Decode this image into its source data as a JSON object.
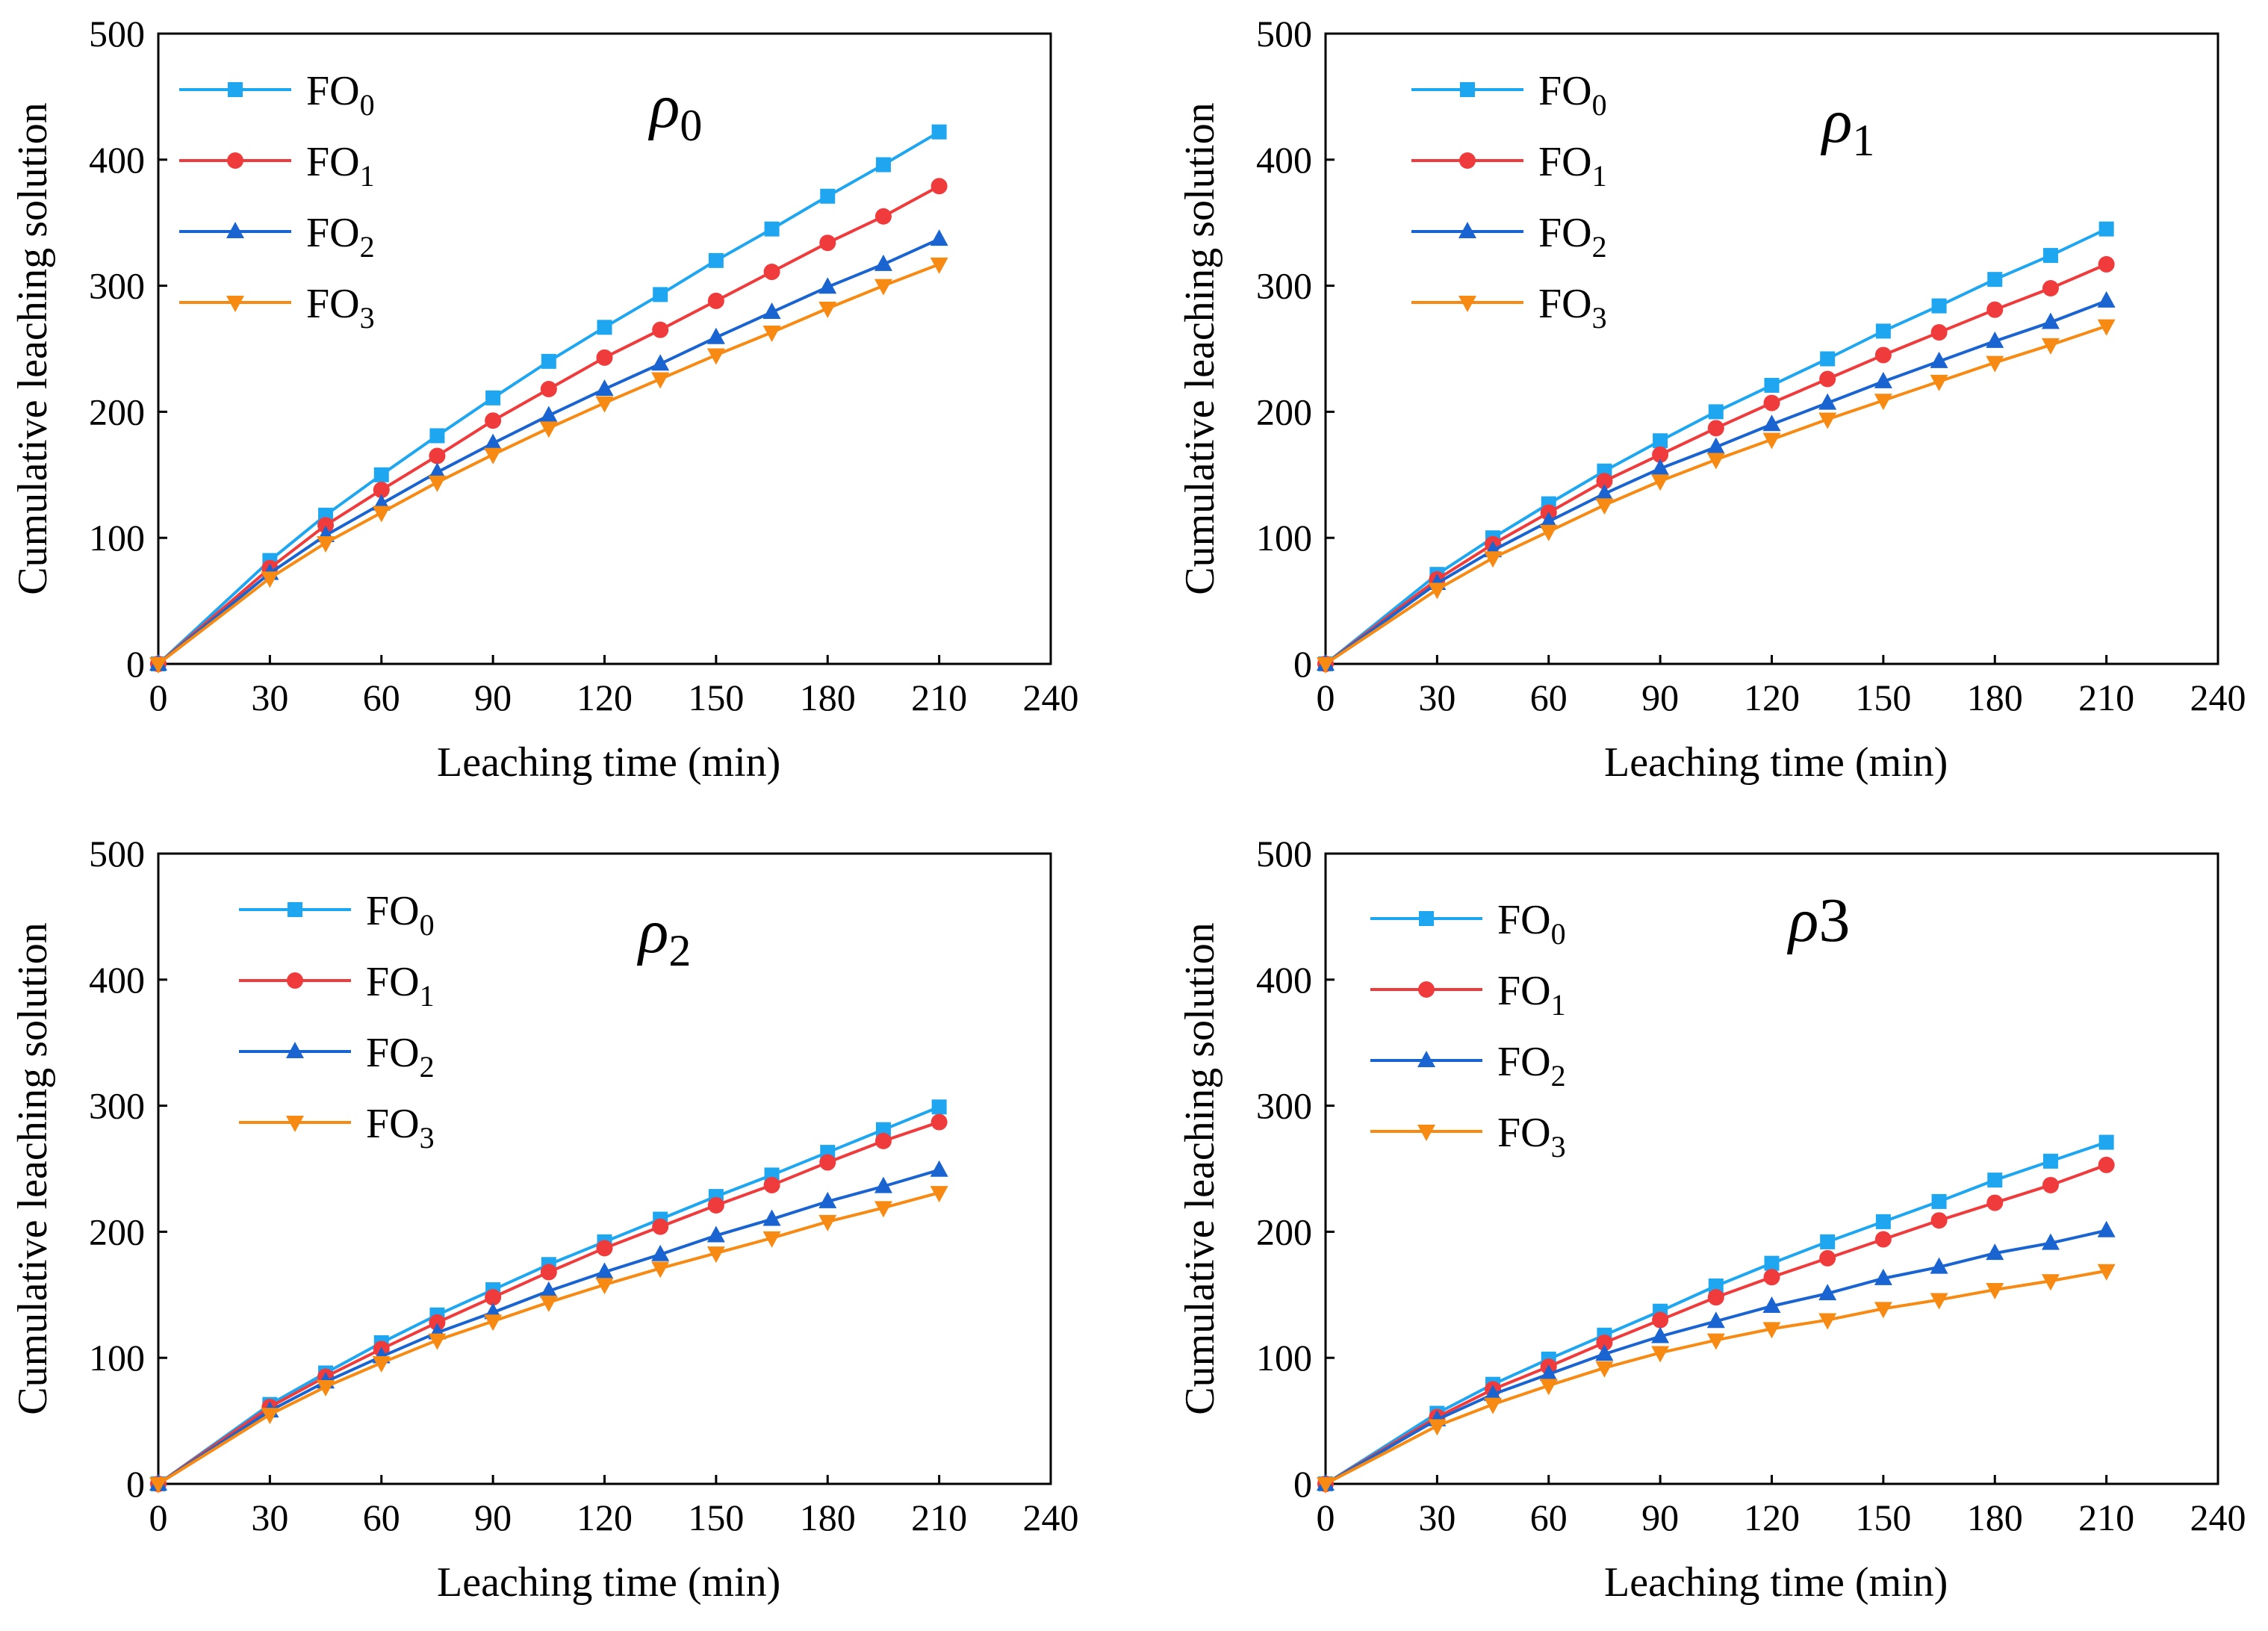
{
  "figure": {
    "description": "Four-panel line chart of cumulative leaching solution vs leaching time"
  },
  "chart_data": [
    {
      "type": "line",
      "title": "",
      "panel_label": {
        "symbol": "ρ",
        "sub": "0"
      },
      "xlabel": "Leaching time (min)",
      "ylabel": "Cumulative leaching solution",
      "xlim": [
        0,
        240
      ],
      "ylim": [
        0,
        500
      ],
      "xticks": [
        0,
        30,
        60,
        90,
        120,
        150,
        180,
        210,
        240
      ],
      "yticks": [
        0,
        100,
        200,
        300,
        400,
        500
      ],
      "legend_position": "top-left",
      "x": [
        0,
        30,
        45,
        60,
        75,
        90,
        105,
        120,
        135,
        150,
        165,
        180,
        195,
        210
      ],
      "series": [
        {
          "name": "FO",
          "sub": "0",
          "marker": "square",
          "color": "#1ea7f0",
          "values": [
            0,
            82,
            118,
            150,
            181,
            211,
            240,
            267,
            293,
            320,
            345,
            371,
            396,
            422
          ]
        },
        {
          "name": "FO",
          "sub": "1",
          "marker": "circle",
          "color": "#ef3b3b",
          "values": [
            0,
            76,
            110,
            138,
            165,
            193,
            218,
            243,
            265,
            288,
            311,
            334,
            355,
            379
          ]
        },
        {
          "name": "FO",
          "sub": "2",
          "marker": "triangle-up",
          "color": "#1a64d1",
          "values": [
            0,
            72,
            102,
            127,
            152,
            175,
            197,
            218,
            238,
            259,
            279,
            299,
            317,
            337
          ]
        },
        {
          "name": "FO",
          "sub": "3",
          "marker": "triangle-down",
          "color": "#f78a12",
          "values": [
            0,
            68,
            96,
            120,
            144,
            166,
            187,
            207,
            226,
            245,
            263,
            282,
            300,
            317
          ]
        }
      ]
    },
    {
      "type": "line",
      "title": "",
      "panel_label": {
        "symbol": "ρ",
        "sub": "1"
      },
      "xlabel": "Leaching time (min)",
      "ylabel": "Cumulative leaching solution",
      "xlim": [
        0,
        240
      ],
      "ylim": [
        0,
        500
      ],
      "xticks": [
        0,
        30,
        60,
        90,
        120,
        150,
        180,
        210,
        240
      ],
      "yticks": [
        0,
        100,
        200,
        300,
        400,
        500
      ],
      "legend_position": "top-left",
      "x": [
        0,
        30,
        45,
        60,
        75,
        90,
        105,
        120,
        135,
        150,
        165,
        180,
        195,
        210
      ],
      "series": [
        {
          "name": "FO",
          "sub": "0",
          "marker": "square",
          "color": "#1ea7f0",
          "values": [
            0,
            71,
            100,
            127,
            153,
            177,
            200,
            221,
            242,
            264,
            284,
            305,
            324,
            345
          ]
        },
        {
          "name": "FO",
          "sub": "1",
          "marker": "circle",
          "color": "#ef3b3b",
          "values": [
            0,
            67,
            95,
            120,
            145,
            166,
            187,
            207,
            226,
            245,
            263,
            281,
            298,
            317
          ]
        },
        {
          "name": "FO",
          "sub": "2",
          "marker": "triangle-up",
          "color": "#1a64d1",
          "values": [
            0,
            64,
            90,
            113,
            135,
            155,
            172,
            190,
            207,
            224,
            240,
            256,
            271,
            288
          ]
        },
        {
          "name": "FO",
          "sub": "3",
          "marker": "triangle-down",
          "color": "#f78a12",
          "values": [
            0,
            59,
            84,
            105,
            126,
            145,
            162,
            178,
            194,
            209,
            224,
            239,
            253,
            268
          ]
        }
      ]
    },
    {
      "type": "line",
      "title": "",
      "panel_label": {
        "symbol": "ρ",
        "sub": "2"
      },
      "xlabel": "Leaching time (min)",
      "ylabel": "Cumulative leaching solution",
      "xlim": [
        0,
        240
      ],
      "ylim": [
        0,
        500
      ],
      "xticks": [
        0,
        30,
        60,
        90,
        120,
        150,
        180,
        210,
        240
      ],
      "yticks": [
        0,
        100,
        200,
        300,
        400,
        500
      ],
      "legend_position": "top-left",
      "x": [
        0,
        30,
        45,
        60,
        75,
        90,
        105,
        120,
        135,
        150,
        165,
        180,
        195,
        210
      ],
      "series": [
        {
          "name": "FO",
          "sub": "0",
          "marker": "square",
          "color": "#1ea7f0",
          "values": [
            0,
            63,
            88,
            112,
            134,
            154,
            174,
            192,
            210,
            228,
            245,
            263,
            281,
            299
          ]
        },
        {
          "name": "FO",
          "sub": "1",
          "marker": "circle",
          "color": "#ef3b3b",
          "values": [
            0,
            61,
            85,
            107,
            128,
            148,
            168,
            187,
            204,
            221,
            237,
            255,
            272,
            287
          ]
        },
        {
          "name": "FO",
          "sub": "2",
          "marker": "triangle-up",
          "color": "#1a64d1",
          "values": [
            0,
            58,
            81,
            101,
            120,
            136,
            153,
            168,
            182,
            197,
            210,
            224,
            236,
            249
          ]
        },
        {
          "name": "FO",
          "sub": "3",
          "marker": "triangle-down",
          "color": "#f78a12",
          "values": [
            0,
            55,
            77,
            96,
            114,
            129,
            144,
            158,
            171,
            183,
            195,
            208,
            219,
            231
          ]
        }
      ]
    },
    {
      "type": "line",
      "title": "",
      "panel_label": {
        "symbol": "ρ",
        "text": "3"
      },
      "xlabel": "Leaching time (min)",
      "ylabel": "Cumulative leaching solution",
      "xlim": [
        0,
        240
      ],
      "ylim": [
        0,
        500
      ],
      "xticks": [
        0,
        30,
        60,
        90,
        120,
        150,
        180,
        210,
        240
      ],
      "yticks": [
        0,
        100,
        200,
        300,
        400,
        500
      ],
      "legend_position": "top-left",
      "x": [
        0,
        30,
        45,
        60,
        75,
        90,
        105,
        120,
        135,
        150,
        165,
        180,
        195,
        210
      ],
      "series": [
        {
          "name": "FO",
          "sub": "0",
          "marker": "square",
          "color": "#1ea7f0",
          "values": [
            0,
            56,
            79,
            99,
            118,
            137,
            157,
            175,
            192,
            208,
            224,
            241,
            256,
            271
          ]
        },
        {
          "name": "FO",
          "sub": "1",
          "marker": "circle",
          "color": "#ef3b3b",
          "values": [
            0,
            53,
            75,
            93,
            112,
            130,
            148,
            164,
            179,
            194,
            209,
            223,
            237,
            253
          ]
        },
        {
          "name": "FO",
          "sub": "2",
          "marker": "triangle-up",
          "color": "#1a64d1",
          "values": [
            0,
            51,
            71,
            87,
            103,
            117,
            129,
            141,
            151,
            163,
            172,
            183,
            191,
            201
          ]
        },
        {
          "name": "FO",
          "sub": "3",
          "marker": "triangle-down",
          "color": "#f78a12",
          "values": [
            0,
            46,
            63,
            78,
            92,
            104,
            114,
            123,
            130,
            139,
            146,
            154,
            161,
            169
          ]
        }
      ]
    }
  ]
}
